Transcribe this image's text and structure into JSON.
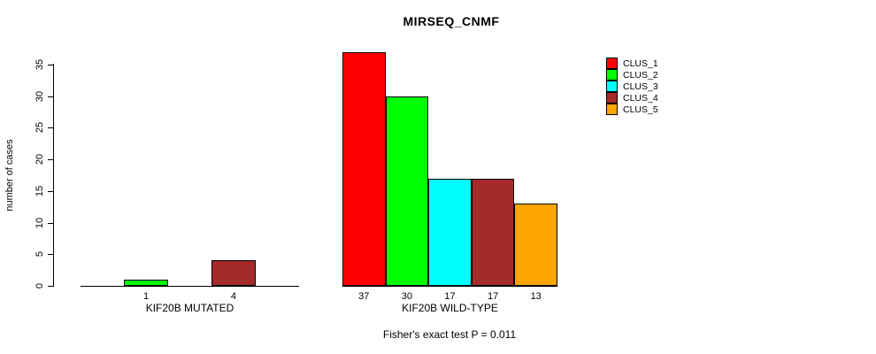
{
  "chart_data": {
    "type": "bar",
    "title": "MIRSEQ_CNMF",
    "ylabel": "number of cases",
    "ylim": [
      0,
      37
    ],
    "yticks": [
      0,
      5,
      10,
      15,
      20,
      25,
      30,
      35
    ],
    "grid": false,
    "legend_position": "right",
    "categories": [
      "KIF20B MUTATED",
      "KIF20B WILD-TYPE"
    ],
    "series": [
      {
        "name": "CLUS_1",
        "color": "#FF0000",
        "values": [
          0,
          37
        ]
      },
      {
        "name": "CLUS_2",
        "color": "#00FF00",
        "values": [
          1,
          30
        ]
      },
      {
        "name": "CLUS_3",
        "color": "#00FFFF",
        "values": [
          0,
          17
        ]
      },
      {
        "name": "CLUS_4",
        "color": "#A52A2A",
        "values": [
          4,
          17
        ]
      },
      {
        "name": "CLUS_5",
        "color": "#FFA500",
        "values": [
          0,
          13
        ]
      }
    ],
    "bar_count_labels": [
      [
        "",
        "1",
        "",
        "4",
        ""
      ],
      [
        "37",
        "30",
        "17",
        "17",
        "13"
      ]
    ],
    "footnote": "Fisher's exact test P = 0.011"
  }
}
